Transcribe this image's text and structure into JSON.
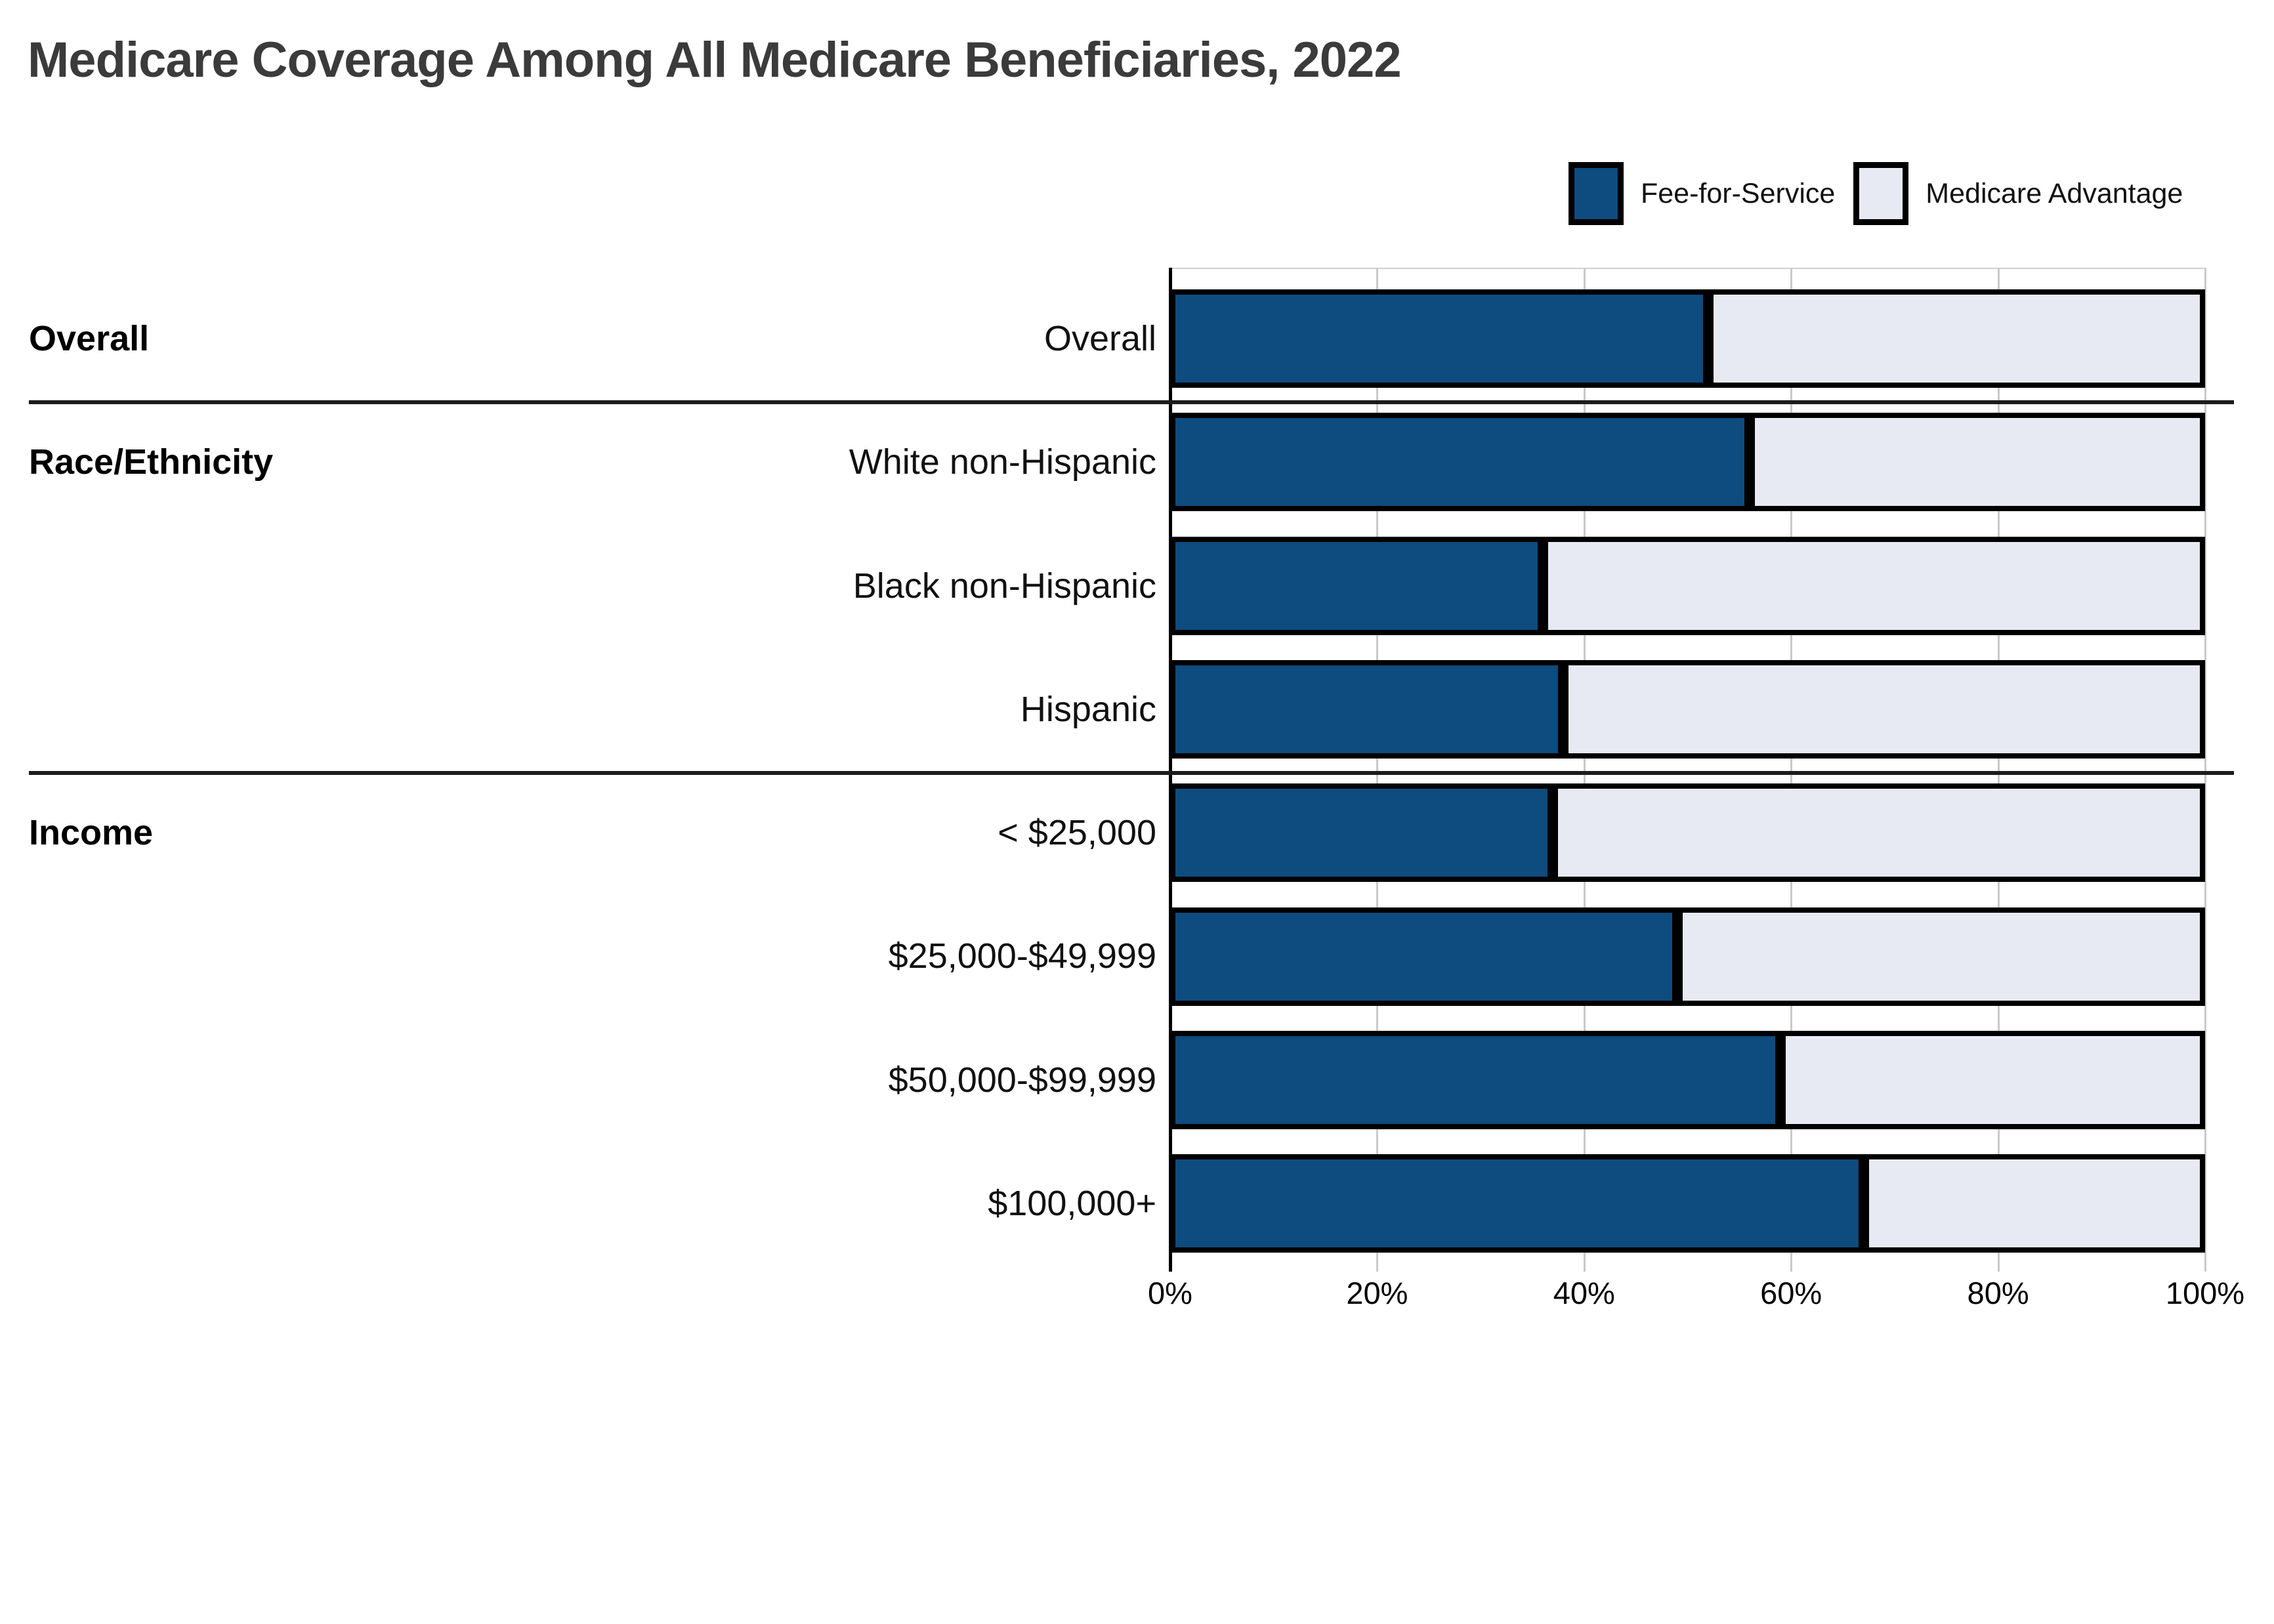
{
  "title": "Medicare Coverage Among All Medicare Beneficiaries, 2022",
  "legend": {
    "items": [
      {
        "label": "Fee-for-Service",
        "color": "#0E4B7E"
      },
      {
        "label": "Medicare Advantage",
        "color": "#E7EAF2"
      }
    ]
  },
  "colors": {
    "fee_for_service": "#0E4B7E",
    "medicare_advantage": "#E7EAF2",
    "bar_border": "#000000",
    "gridline": "#c9c9c9",
    "title_text": "#3b3b3b",
    "divider": "#1c1c1c"
  },
  "chart_data": {
    "type": "bar",
    "stacked": true,
    "orientation": "horizontal",
    "title": "Medicare Coverage Among All Medicare Beneficiaries, 2022",
    "categories": [
      "Overall",
      "White non-Hispanic",
      "Black non-Hispanic",
      "Hispanic",
      "< $25,000",
      "$25,000-$49,999",
      "$50,000-$99,999",
      "$100,000+"
    ],
    "series": [
      {
        "name": "Fee-for-Service",
        "color": "#0E4B7E",
        "values": [
          52,
          56,
          36,
          38,
          37,
          49,
          59,
          67
        ]
      },
      {
        "name": "Medicare Advantage",
        "color": "#E7EAF2",
        "values": [
          48,
          44,
          64,
          62,
          63,
          51,
          41,
          33
        ]
      }
    ],
    "groups": [
      {
        "label": "Overall",
        "rows": [
          0
        ]
      },
      {
        "label": "Race/Ethnicity",
        "rows": [
          1,
          2,
          3
        ]
      },
      {
        "label": "Income",
        "rows": [
          4,
          5,
          6,
          7
        ]
      }
    ],
    "x_ticks": [
      "0%",
      "20%",
      "40%",
      "60%",
      "80%",
      "100%"
    ],
    "x_tick_values": [
      0,
      20,
      40,
      60,
      80,
      100
    ],
    "xlim": [
      0,
      100
    ],
    "xlabel": "",
    "ylabel": "",
    "grid": true,
    "legend_position": "top-right"
  }
}
